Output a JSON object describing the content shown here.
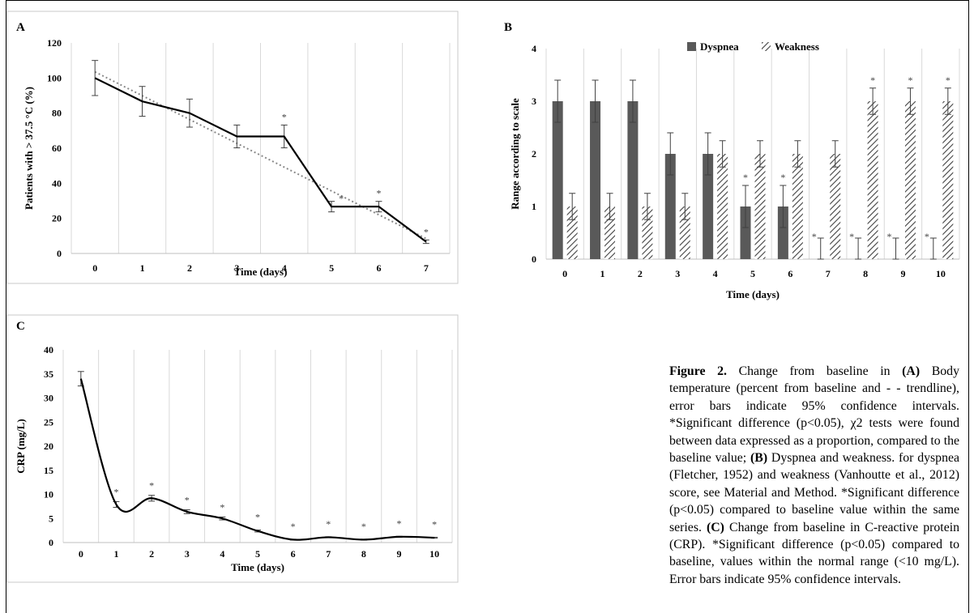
{
  "panel_labels": {
    "a": "A",
    "b": "B",
    "c": "C"
  },
  "caption": {
    "lead": "Figure 2.",
    "t1": " Change from baseline in ",
    "a_tag": "(A)",
    "t2": " Body temperature (percent from baseline and - - trendline), error bars indicate 95% confidence intervals. *Significant difference (p<0.05), χ2 tests were found between data expressed as a proportion, compared to the baseline value; ",
    "b_tag": "(B)",
    "t3": " Dyspnea and weakness. for dyspnea (Fletcher, 1952) and weakness (Vanhoutte et al., 2012) score, see Material and Method. *Significant difference (p<0.05) compared to baseline value within the same series. ",
    "c_tag": "(C)",
    "t4": " Change from baseline in C-reactive protein (CRP). *Significant difference (p<0.05) compared to baseline, values within the normal range (<10 mg/L). Error bars indicate 95% confidence intervals."
  },
  "chart_data": [
    {
      "id": "A",
      "type": "line",
      "xlabel": "Time (days)",
      "ylabel": "Patients with > 37.5 °C (%)",
      "x": [
        0,
        1,
        2,
        3,
        4,
        5,
        6,
        7
      ],
      "ylim": [
        0,
        120
      ],
      "yticks": [
        0,
        20,
        40,
        60,
        80,
        100,
        120
      ],
      "grid": "vertical",
      "series": [
        {
          "values": [
            100,
            86.7,
            80,
            66.7,
            66.7,
            26.7,
            26.7,
            6.7
          ],
          "errors": [
            10,
            8.5,
            8,
            6.5,
            6.5,
            3,
            3,
            1
          ],
          "significant": [
            false,
            false,
            false,
            false,
            true,
            true,
            true,
            true
          ],
          "color": "#000000"
        }
      ],
      "trendline": {
        "from": [
          0,
          103.5
        ],
        "to": [
          7,
          8.5
        ],
        "style": "dotted",
        "color": "#888888"
      },
      "annotation": "*"
    },
    {
      "id": "B",
      "type": "bar",
      "xlabel": "Time (days)",
      "ylabel": "Range according to scale",
      "categories": [
        "0",
        "1",
        "2",
        "3",
        "4",
        "5",
        "6",
        "7",
        "8",
        "9",
        "10"
      ],
      "ylim": [
        0,
        4
      ],
      "yticks": [
        0,
        1,
        2,
        3,
        4
      ],
      "grid": "vertical",
      "legend_position": "top",
      "series": [
        {
          "name": "Dyspnea",
          "values": [
            3,
            3,
            3,
            2,
            2,
            1,
            1,
            0,
            0,
            0,
            0
          ],
          "errors": [
            0.4,
            0.4,
            0.4,
            0.4,
            0.4,
            0.4,
            0.4,
            0.4,
            0.4,
            0.4,
            0.4
          ],
          "significant": [
            false,
            false,
            false,
            false,
            false,
            true,
            true,
            true,
            true,
            true,
            true
          ],
          "color": "#595959"
        },
        {
          "name": "Weakness",
          "values": [
            1,
            1,
            1,
            1,
            2,
            2,
            2,
            2,
            3,
            3,
            3
          ],
          "errors": [
            0.25,
            0.25,
            0.25,
            0.25,
            0.25,
            0.25,
            0.25,
            0.25,
            0.25,
            0.25,
            0.25
          ],
          "significant": [
            false,
            false,
            false,
            false,
            false,
            false,
            false,
            false,
            true,
            true,
            true
          ],
          "color": "#404040",
          "pattern": "hatched"
        }
      ],
      "annotation": "*"
    },
    {
      "id": "C",
      "type": "line",
      "xlabel": "Time (days)",
      "ylabel": "CRP (mg/L)",
      "x": [
        0,
        1,
        2,
        3,
        4,
        5,
        6,
        7,
        8,
        9,
        10
      ],
      "ylim": [
        0,
        40
      ],
      "yticks": [
        0,
        5,
        10,
        15,
        20,
        25,
        30,
        35,
        40
      ],
      "grid": "vertical",
      "series": [
        {
          "values": [
            34,
            7.9,
            9.2,
            6.4,
            5,
            2.4,
            0.6,
            1.1,
            0.6,
            1.2,
            1
          ],
          "errors": [
            1.5,
            0.6,
            0.6,
            0.4,
            0.3,
            0.2,
            0.1,
            0.1,
            0.1,
            0.1,
            0.1
          ],
          "significant": [
            false,
            true,
            true,
            true,
            true,
            true,
            true,
            true,
            true,
            true,
            true
          ],
          "color": "#000000",
          "smooth": true
        }
      ],
      "annotation": "*"
    }
  ]
}
